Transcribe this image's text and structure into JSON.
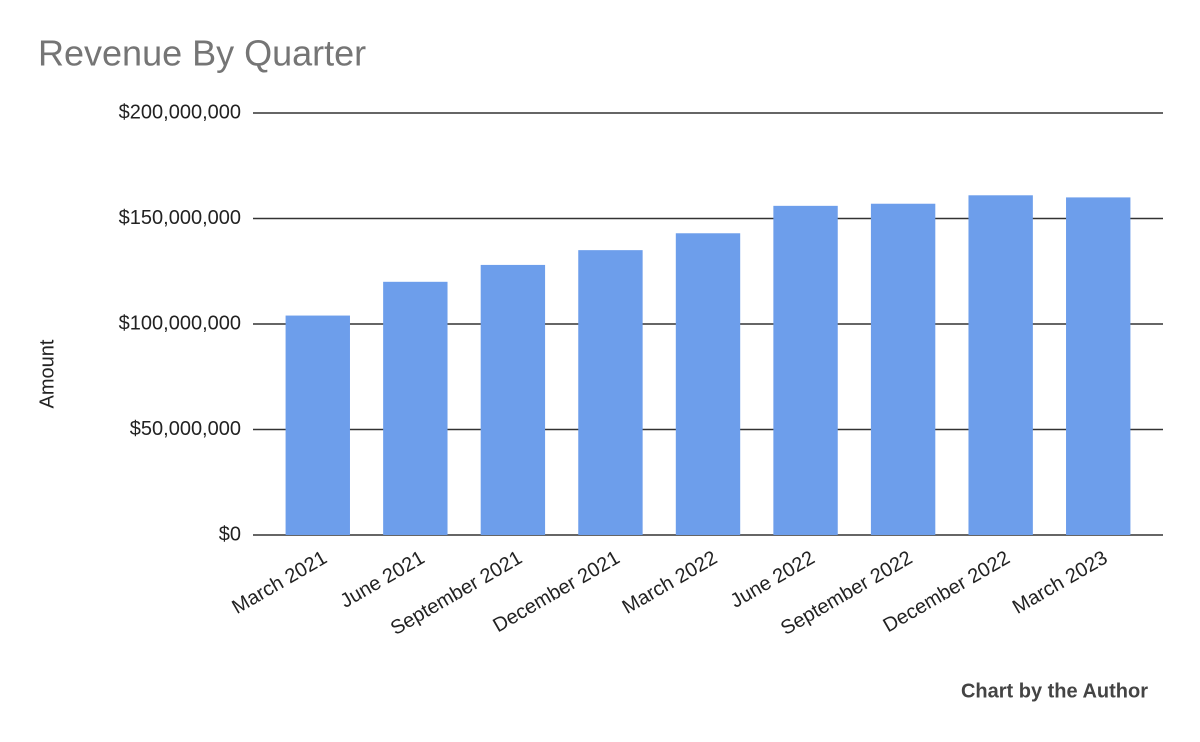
{
  "chart_data": {
    "type": "bar",
    "title": "Revenue By Quarter",
    "y_label": "Amount",
    "source": "Chart by the Author",
    "categories": [
      "March 2021",
      "June 2021",
      "September 2021",
      "December 2021",
      "March 2022",
      "June 2022",
      "September 2022",
      "December 2022",
      "March 2023"
    ],
    "values": [
      104000000,
      120000000,
      128000000,
      135000000,
      143000000,
      156000000,
      157000000,
      161000000,
      160000000
    ],
    "color": "#6d9eeb",
    "ylim": [
      0,
      200000000
    ],
    "yticks": [
      {
        "value": 0,
        "label": "$0"
      },
      {
        "value": 50000000,
        "label": "$50,000,000"
      },
      {
        "value": 100000000,
        "label": "$100,000,000"
      },
      {
        "value": 150000000,
        "label": "$150,000,000"
      },
      {
        "value": 200000000,
        "label": "$200,000,000"
      }
    ],
    "grid": true
  }
}
